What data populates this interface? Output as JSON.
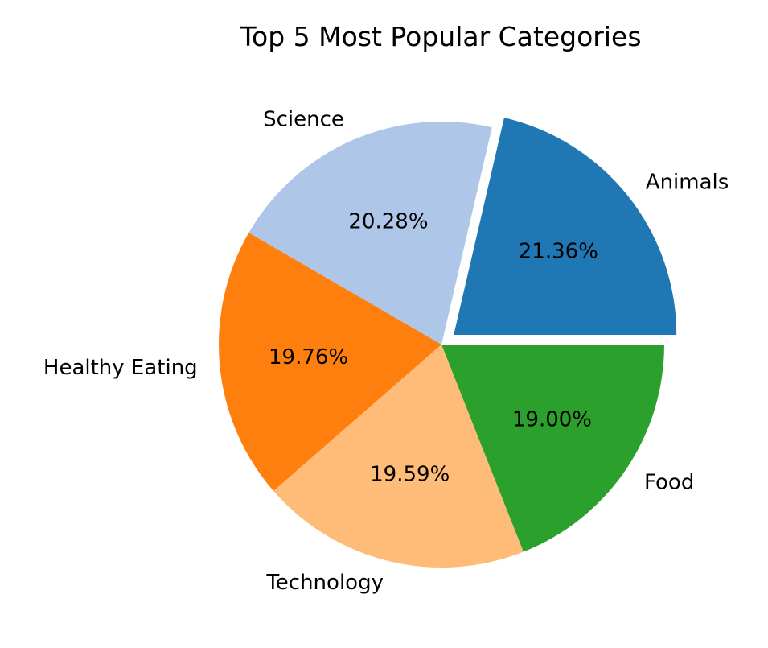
{
  "chart_data": {
    "type": "pie",
    "title": "Top 5 Most Popular Categories",
    "start_angle_deg": 0,
    "direction": "counterclockwise",
    "legend": "none",
    "slices": [
      {
        "label": "Animals",
        "value": 21.36,
        "pct_label": "21.36%",
        "color": "#1f77b4",
        "explode": 0.07
      },
      {
        "label": "Science",
        "value": 20.28,
        "pct_label": "20.28%",
        "color": "#aec7e8",
        "explode": 0
      },
      {
        "label": "Healthy Eating",
        "value": 19.76,
        "pct_label": "19.76%",
        "color": "#ff7f0e",
        "explode": 0
      },
      {
        "label": "Technology",
        "value": 19.59,
        "pct_label": "19.59%",
        "color": "#ffbb78",
        "explode": 0
      },
      {
        "label": "Food",
        "value": 19.0,
        "pct_label": "19.00%",
        "color": "#2ca02c",
        "explode": 0
      }
    ]
  }
}
